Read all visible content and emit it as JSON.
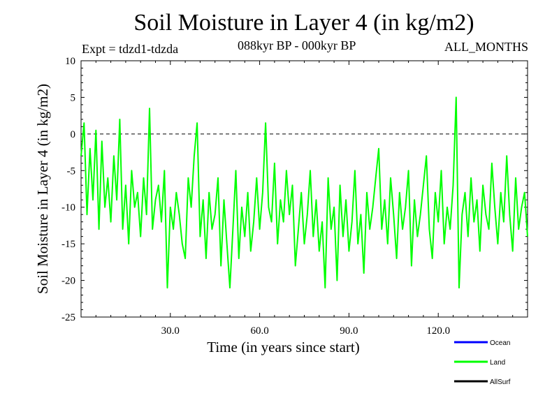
{
  "header": {
    "title": "Soil Moisture in Layer 4 (in kg/m2)",
    "experiment": "Expt = tdzd1-tdzda",
    "period": "088kyr BP - 000kyr BP",
    "months": "ALL_MONTHS"
  },
  "chart_data": {
    "type": "line",
    "title": "Soil Moisture in Layer 4 (in kg/m2)",
    "xlabel": "Time (in years since start)",
    "ylabel": "Soil Moisture in Layer 4 (in kg/m2)",
    "xlim": [
      0,
      150
    ],
    "ylim": [
      -25,
      10
    ],
    "x_ticks": [
      30,
      60,
      90,
      120
    ],
    "x_tick_labels": [
      "30.0",
      "60.0",
      "90.0",
      "120.0"
    ],
    "y_ticks": [
      10,
      5,
      0,
      -5,
      -10,
      -15,
      -20,
      -25
    ],
    "y_tick_labels": [
      "10",
      "5",
      "0",
      "-5",
      "-10",
      "-15",
      "-20",
      "-25"
    ],
    "reference_line": {
      "y": 0,
      "style": "dashed"
    },
    "series": [
      {
        "name": "Land",
        "color": "#00ff00",
        "x": [
          0,
          1,
          2,
          3,
          4,
          5,
          6,
          7,
          8,
          9,
          10,
          11,
          12,
          13,
          14,
          15,
          16,
          17,
          18,
          19,
          20,
          21,
          22,
          23,
          24,
          25,
          26,
          27,
          28,
          29,
          30,
          31,
          32,
          33,
          34,
          35,
          36,
          37,
          38,
          39,
          40,
          41,
          42,
          43,
          44,
          45,
          46,
          47,
          48,
          49,
          50,
          51,
          52,
          53,
          54,
          55,
          56,
          57,
          58,
          59,
          60,
          61,
          62,
          63,
          64,
          65,
          66,
          67,
          68,
          69,
          70,
          71,
          72,
          73,
          74,
          75,
          76,
          77,
          78,
          79,
          80,
          81,
          82,
          83,
          84,
          85,
          86,
          87,
          88,
          89,
          90,
          91,
          92,
          93,
          94,
          95,
          96,
          97,
          98,
          99,
          100,
          101,
          102,
          103,
          104,
          105,
          106,
          107,
          108,
          109,
          110,
          111,
          112,
          113,
          114,
          115,
          116,
          117,
          118,
          119,
          120,
          121,
          122,
          123,
          124,
          125,
          126,
          127,
          128,
          129,
          130,
          131,
          132,
          133,
          134,
          135,
          136,
          137,
          138,
          139,
          140,
          141,
          142,
          143,
          144,
          145,
          146,
          147,
          148,
          149,
          150
        ],
        "values": [
          -3,
          1.5,
          -11,
          -2,
          -9,
          0.5,
          -13,
          -1,
          -10,
          -6,
          -12,
          -3,
          -9,
          2,
          -13,
          -7,
          -15,
          -5,
          -10,
          -8,
          -14,
          -6,
          -11,
          3.5,
          -13,
          -9,
          -7,
          -12,
          -5,
          -21,
          -10,
          -13,
          -8,
          -11,
          -15,
          -17,
          -6,
          -10,
          -3,
          1.5,
          -14,
          -9,
          -17,
          -8,
          -13,
          -11,
          -6,
          -18,
          -9,
          -15,
          -21,
          -13,
          -5,
          -17,
          -10,
          -14,
          -8,
          -16,
          -12,
          -6,
          -13,
          -8,
          1.5,
          -10,
          -12,
          -4,
          -15,
          -9,
          -12,
          -5,
          -11,
          -7,
          -18,
          -13,
          -8,
          -15,
          -11,
          -5,
          -14,
          -9,
          -16,
          -12,
          -21,
          -6,
          -13,
          -10,
          -20,
          -7,
          -14,
          -9,
          -16,
          -12,
          -5,
          -15,
          -11,
          -19,
          -8,
          -13,
          -10,
          -6,
          -2,
          -13,
          -9,
          -15,
          -6,
          -11,
          -17,
          -8,
          -13,
          -10,
          -5,
          -18,
          -9,
          -14,
          -11,
          -7,
          -3,
          -13,
          -17,
          -8,
          -12,
          -5,
          -15,
          -10,
          -13,
          -7,
          5,
          -21,
          -11,
          -8,
          -14,
          -6,
          -12,
          -9,
          -16,
          -7,
          -11,
          -13,
          -4,
          -10,
          -15,
          -8,
          -12,
          -3,
          -11,
          -16,
          -6,
          -13,
          -10,
          -8,
          -14
        ]
      }
    ],
    "legend": {
      "position": "bottom-right",
      "entries": [
        {
          "label": "Ocean",
          "color": "#0000ff"
        },
        {
          "label": "Land",
          "color": "#00ff00"
        },
        {
          "label": "AllSurf",
          "color": "#000000"
        }
      ]
    }
  }
}
